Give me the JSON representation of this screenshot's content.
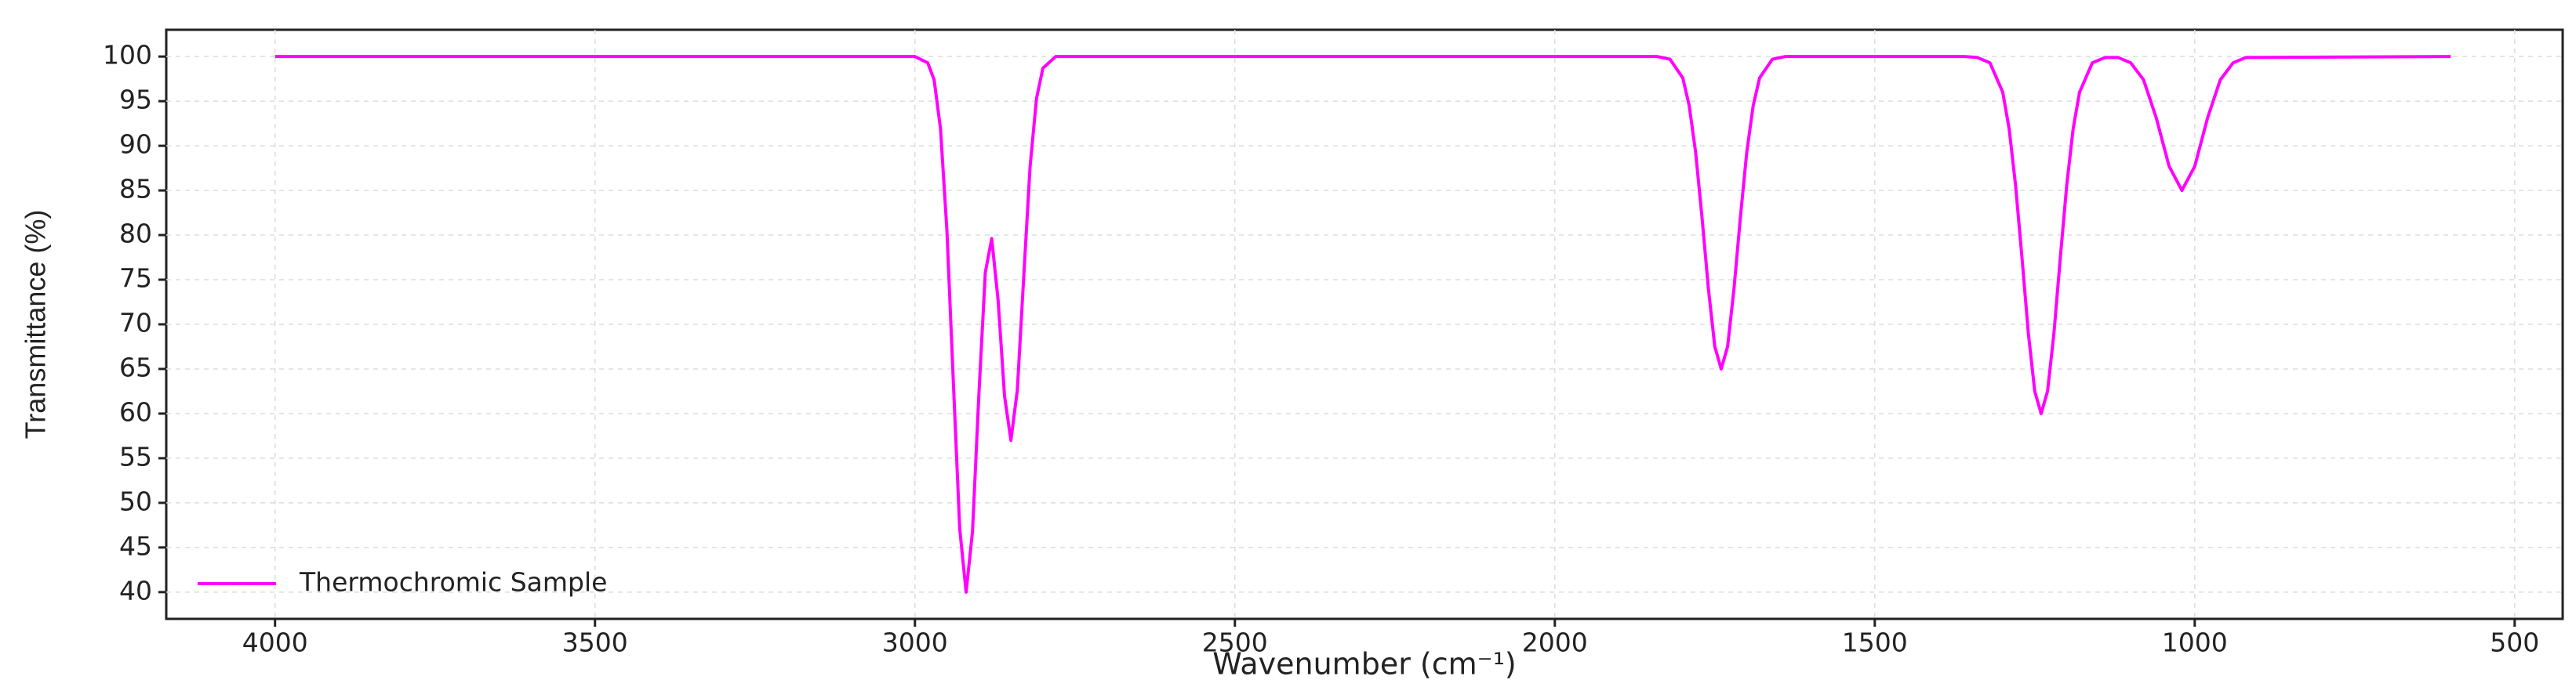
{
  "chart_data": {
    "type": "line",
    "xlabel": "Wavenumber (cm⁻¹)",
    "ylabel": "Transmittance (%)",
    "x": [
      4000,
      3000,
      2980,
      2970,
      2960,
      2950,
      2940,
      2930,
      2920,
      2910,
      2900,
      2890,
      2880,
      2870,
      2860,
      2850,
      2840,
      2830,
      2820,
      2810,
      2800,
      2780,
      1840,
      1820,
      1800,
      1790,
      1780,
      1770,
      1760,
      1750,
      1740,
      1730,
      1720,
      1710,
      1700,
      1690,
      1680,
      1660,
      1640,
      1360,
      1340,
      1320,
      1300,
      1290,
      1280,
      1270,
      1260,
      1250,
      1240,
      1230,
      1220,
      1210,
      1200,
      1190,
      1180,
      1160,
      1140,
      1120,
      1100,
      1080,
      1060,
      1040,
      1020,
      1000,
      980,
      960,
      940,
      920,
      600
    ],
    "series": [
      {
        "name": "Thermochromic Sample",
        "color": "#ff00ff",
        "values": [
          100,
          100,
          99.3,
          97.4,
          91.9,
          80.5,
          63.6,
          47.1,
          40,
          46.8,
          62.2,
          75.8,
          79.6,
          72.7,
          62.0,
          57,
          62.6,
          75.3,
          87.7,
          95.3,
          98.7,
          100,
          100,
          99.7,
          97.6,
          94.5,
          89.3,
          82.0,
          74.0,
          67.5,
          65,
          67.5,
          74.0,
          82.0,
          89.3,
          94.5,
          97.6,
          99.7,
          100,
          100,
          99.9,
          99.3,
          96.0,
          91.9,
          85.6,
          77.5,
          69,
          62.5,
          60,
          62.5,
          69,
          77.5,
          85.6,
          91.9,
          96.0,
          99.3,
          99.9,
          99.9,
          99.3,
          97.4,
          93.1,
          87.7,
          85,
          87.7,
          93.1,
          97.4,
          99.3,
          99.9,
          100
        ]
      }
    ],
    "xlim": [
      4170,
      425
    ],
    "ylim": [
      37,
      103
    ],
    "xticks": [
      4000,
      3500,
      3000,
      2500,
      2000,
      1500,
      1000,
      500
    ],
    "yticks": [
      40,
      45,
      50,
      55,
      60,
      65,
      70,
      75,
      80,
      85,
      90,
      95,
      100
    ],
    "grid": true,
    "legend": "lower-left"
  }
}
